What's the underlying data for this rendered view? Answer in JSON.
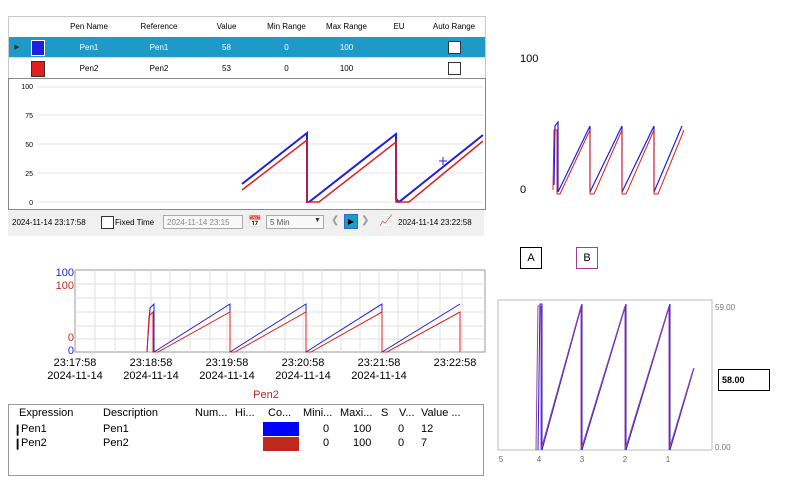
{
  "pen_table": {
    "headers": [
      "Pen Name",
      "Reference",
      "Value",
      "Min Range",
      "Max Range",
      "EU",
      "Auto Range"
    ],
    "rows": [
      {
        "name": "Pen1",
        "reference": "Pen1",
        "value": "58",
        "min": "0",
        "max": "100",
        "eu": "",
        "color": "#1f1fe0",
        "selected": true,
        "auto_range": false
      },
      {
        "name": "Pen2",
        "reference": "Pen2",
        "value": "53",
        "min": "0",
        "max": "100",
        "eu": "",
        "color": "#e01f1f",
        "selected": false,
        "auto_range": false
      }
    ]
  },
  "top_chart": {
    "y_ticks": [
      "100",
      "75",
      "50",
      "25",
      "0"
    ]
  },
  "toolbar": {
    "start_time": "2024-11-14 23:17:58",
    "fixed_time_label": "Fixed Time",
    "fixed_time_value": "2024-11-14 23:15",
    "duration": "5 Min",
    "end_time": "2024-11-14 23:22:58"
  },
  "right_mini": {
    "y_max": "100",
    "y_min": "0"
  },
  "buttons": {
    "a_label": "A",
    "b_label": "B"
  },
  "bottom_chart": {
    "y_labels_blue": [
      "100",
      "0"
    ],
    "y_labels_red": [
      "100",
      "0"
    ],
    "x_times": [
      "23:17:58",
      "23:18:58",
      "23:19:58",
      "23:20:58",
      "23:21:58",
      "23:22:58"
    ],
    "x_dates": [
      "2024-11-14",
      "2024-11-14",
      "2024-11-14",
      "2024-11-14",
      "2024-11-14",
      ""
    ],
    "pen_label": "Pen2"
  },
  "grid_list": {
    "headers": [
      "Expression",
      "Description",
      "Num...",
      "Hi...",
      "Co...",
      "Mini...",
      "Maxi...",
      "S",
      "V...",
      "Value ..."
    ],
    "rows": [
      {
        "expression": "Pen1",
        "description": "Pen1",
        "color": "#0000ff",
        "min": "0",
        "max": "100",
        "v": "0",
        "value": "12"
      },
      {
        "expression": "Pen2",
        "description": "Pen2",
        "color": "#c0281e",
        "min": "0",
        "max": "100",
        "v": "0",
        "value": "7"
      }
    ]
  },
  "right_sweep": {
    "y_max": "59.00",
    "y_min": "0.00",
    "current_value": "58.00",
    "x_labels": [
      "5",
      "4",
      "3",
      "2",
      "1"
    ]
  },
  "colors": {
    "pen1": "#1f1fe0",
    "pen2": "#e01f1f",
    "selection": "#1e9ac9",
    "purple": "#a0409a"
  }
}
